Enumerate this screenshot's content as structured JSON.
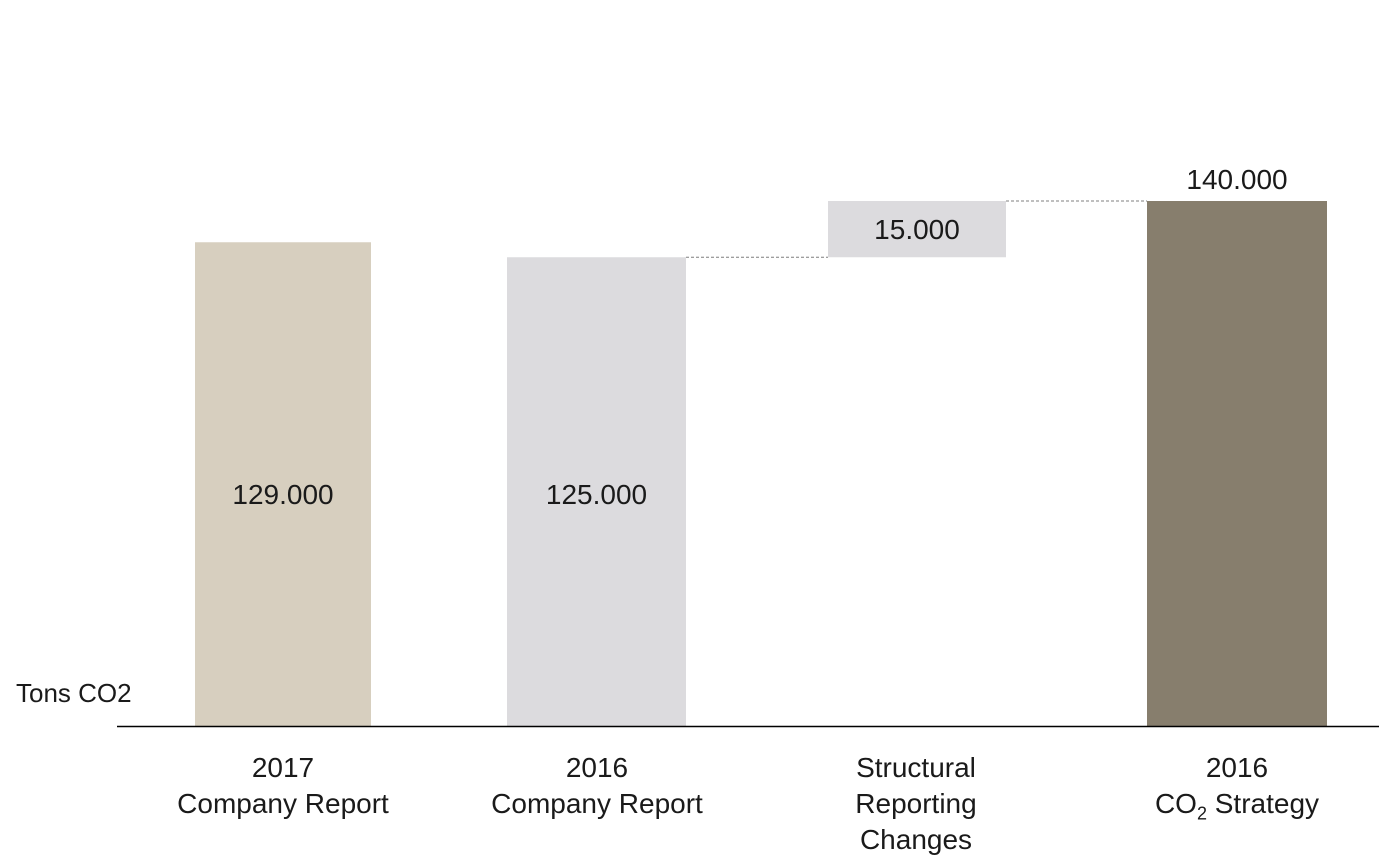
{
  "chart_data": {
    "type": "bar",
    "variant": "waterfall",
    "unit_label": "Tons CO2",
    "categories": [
      {
        "lines": [
          "2017",
          "Company Report"
        ]
      },
      {
        "lines": [
          "2016",
          "Company Report"
        ]
      },
      {
        "lines": [
          "Structural",
          "Reporting",
          "Changes"
        ]
      },
      {
        "line1": "2016",
        "line2_pre": "CO",
        "line2_sub": "2",
        "line2_post": " Strategy"
      }
    ],
    "bars": [
      {
        "kind": "total",
        "value": 129000,
        "label": "129.000",
        "color": "#d7cfbf"
      },
      {
        "kind": "total",
        "value": 125000,
        "label": "125.000",
        "color": "#dcdbde"
      },
      {
        "kind": "delta",
        "base": 125000,
        "value": 15000,
        "label": "15.000",
        "color": "#dcdbde"
      },
      {
        "kind": "total",
        "value": 140000,
        "label": "140.000",
        "color": "#877e6d"
      }
    ],
    "connectors": [
      {
        "from": 1,
        "to": 2,
        "at": 125000
      },
      {
        "from": 2,
        "to": 3,
        "at": 140000
      }
    ],
    "ylim": [
      0,
      140000
    ],
    "grid": false,
    "axis_color": "#000000",
    "connector_color": "#7f7f7f"
  }
}
